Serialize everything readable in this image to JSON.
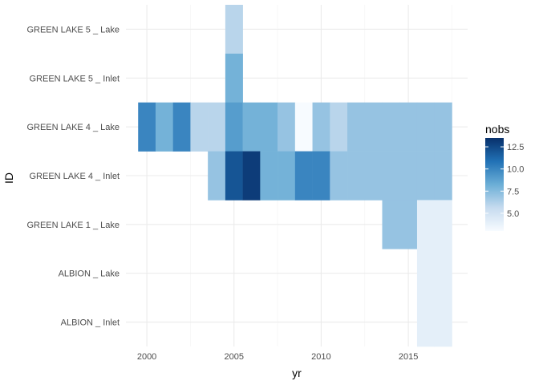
{
  "chart_data": {
    "type": "heatmap",
    "xlabel": "yr",
    "ylabel": "ID",
    "x_ticks": [
      2000,
      2005,
      2010,
      2015
    ],
    "categories": [
      "ALBION _ Inlet",
      "ALBION _ Lake",
      "GREEN LAKE 1 _ Lake",
      "GREEN LAKE 4 _ Inlet",
      "GREEN LAKE 4 _ Lake",
      "GREEN LAKE 5 _ Inlet",
      "GREEN LAKE 5 _ Lake"
    ],
    "xlim": [
      1998.8,
      2018.4
    ],
    "legend": {
      "title": "nobs",
      "position": "right",
      "range": [
        3,
        13.5
      ],
      "ticks": [
        5.0,
        7.5,
        10.0,
        12.5
      ],
      "tick_labels": [
        "5.0",
        "7.5",
        "10.0",
        "12.5"
      ],
      "colors": [
        "#f7fbff",
        "#c6dbef",
        "#6baed6",
        "#2171b5",
        "#08306b"
      ]
    },
    "grid": true,
    "cells": [
      {
        "id": "GREEN LAKE 5 _ Lake",
        "yr": 2005,
        "nobs": 6
      },
      {
        "id": "GREEN LAKE 5 _ Inlet",
        "yr": 2005,
        "nobs": 8
      },
      {
        "id": "GREEN LAKE 4 _ Lake",
        "yr": 2000,
        "nobs": 10
      },
      {
        "id": "GREEN LAKE 4 _ Lake",
        "yr": 2001,
        "nobs": 8
      },
      {
        "id": "GREEN LAKE 4 _ Lake",
        "yr": 2002,
        "nobs": 10
      },
      {
        "id": "GREEN LAKE 4 _ Lake",
        "yr": 2003,
        "nobs": 6
      },
      {
        "id": "GREEN LAKE 4 _ Lake",
        "yr": 2004,
        "nobs": 6
      },
      {
        "id": "GREEN LAKE 4 _ Lake",
        "yr": 2005,
        "nobs": 9
      },
      {
        "id": "GREEN LAKE 4 _ Lake",
        "yr": 2006,
        "nobs": 8
      },
      {
        "id": "GREEN LAKE 4 _ Lake",
        "yr": 2007,
        "nobs": 8
      },
      {
        "id": "GREEN LAKE 4 _ Lake",
        "yr": 2008,
        "nobs": 7
      },
      {
        "id": "GREEN LAKE 4 _ Lake",
        "yr": 2009,
        "nobs": 3
      },
      {
        "id": "GREEN LAKE 4 _ Lake",
        "yr": 2010,
        "nobs": 7
      },
      {
        "id": "GREEN LAKE 4 _ Lake",
        "yr": 2011,
        "nobs": 6
      },
      {
        "id": "GREEN LAKE 4 _ Lake",
        "yr": 2012,
        "nobs": 7
      },
      {
        "id": "GREEN LAKE 4 _ Lake",
        "yr": 2013,
        "nobs": 7
      },
      {
        "id": "GREEN LAKE 4 _ Lake",
        "yr": 2014,
        "nobs": 7
      },
      {
        "id": "GREEN LAKE 4 _ Lake",
        "yr": 2015,
        "nobs": 7
      },
      {
        "id": "GREEN LAKE 4 _ Lake",
        "yr": 2016,
        "nobs": 7
      },
      {
        "id": "GREEN LAKE 4 _ Lake",
        "yr": 2017,
        "nobs": 7
      },
      {
        "id": "GREEN LAKE 4 _ Inlet",
        "yr": 2004,
        "nobs": 7
      },
      {
        "id": "GREEN LAKE 4 _ Inlet",
        "yr": 2005,
        "nobs": 12
      },
      {
        "id": "GREEN LAKE 4 _ Inlet",
        "yr": 2006,
        "nobs": 13
      },
      {
        "id": "GREEN LAKE 4 _ Inlet",
        "yr": 2007,
        "nobs": 8
      },
      {
        "id": "GREEN LAKE 4 _ Inlet",
        "yr": 2008,
        "nobs": 8
      },
      {
        "id": "GREEN LAKE 4 _ Inlet",
        "yr": 2009,
        "nobs": 10
      },
      {
        "id": "GREEN LAKE 4 _ Inlet",
        "yr": 2010,
        "nobs": 10
      },
      {
        "id": "GREEN LAKE 4 _ Inlet",
        "yr": 2011,
        "nobs": 7
      },
      {
        "id": "GREEN LAKE 4 _ Inlet",
        "yr": 2012,
        "nobs": 7
      },
      {
        "id": "GREEN LAKE 4 _ Inlet",
        "yr": 2013,
        "nobs": 7
      },
      {
        "id": "GREEN LAKE 4 _ Inlet",
        "yr": 2014,
        "nobs": 7
      },
      {
        "id": "GREEN LAKE 4 _ Inlet",
        "yr": 2015,
        "nobs": 7
      },
      {
        "id": "GREEN LAKE 4 _ Inlet",
        "yr": 2016,
        "nobs": 7
      },
      {
        "id": "GREEN LAKE 4 _ Inlet",
        "yr": 2017,
        "nobs": 7
      },
      {
        "id": "GREEN LAKE 1 _ Lake",
        "yr": 2014,
        "nobs": 7
      },
      {
        "id": "GREEN LAKE 1 _ Lake",
        "yr": 2015,
        "nobs": 7
      },
      {
        "id": "GREEN LAKE 1 _ Lake",
        "yr": 2016,
        "nobs": 4
      },
      {
        "id": "GREEN LAKE 1 _ Lake",
        "yr": 2017,
        "nobs": 4
      },
      {
        "id": "ALBION _ Lake",
        "yr": 2016,
        "nobs": 4
      },
      {
        "id": "ALBION _ Lake",
        "yr": 2017,
        "nobs": 4
      },
      {
        "id": "ALBION _ Inlet",
        "yr": 2016,
        "nobs": 4
      },
      {
        "id": "ALBION _ Inlet",
        "yr": 2017,
        "nobs": 4
      }
    ]
  }
}
